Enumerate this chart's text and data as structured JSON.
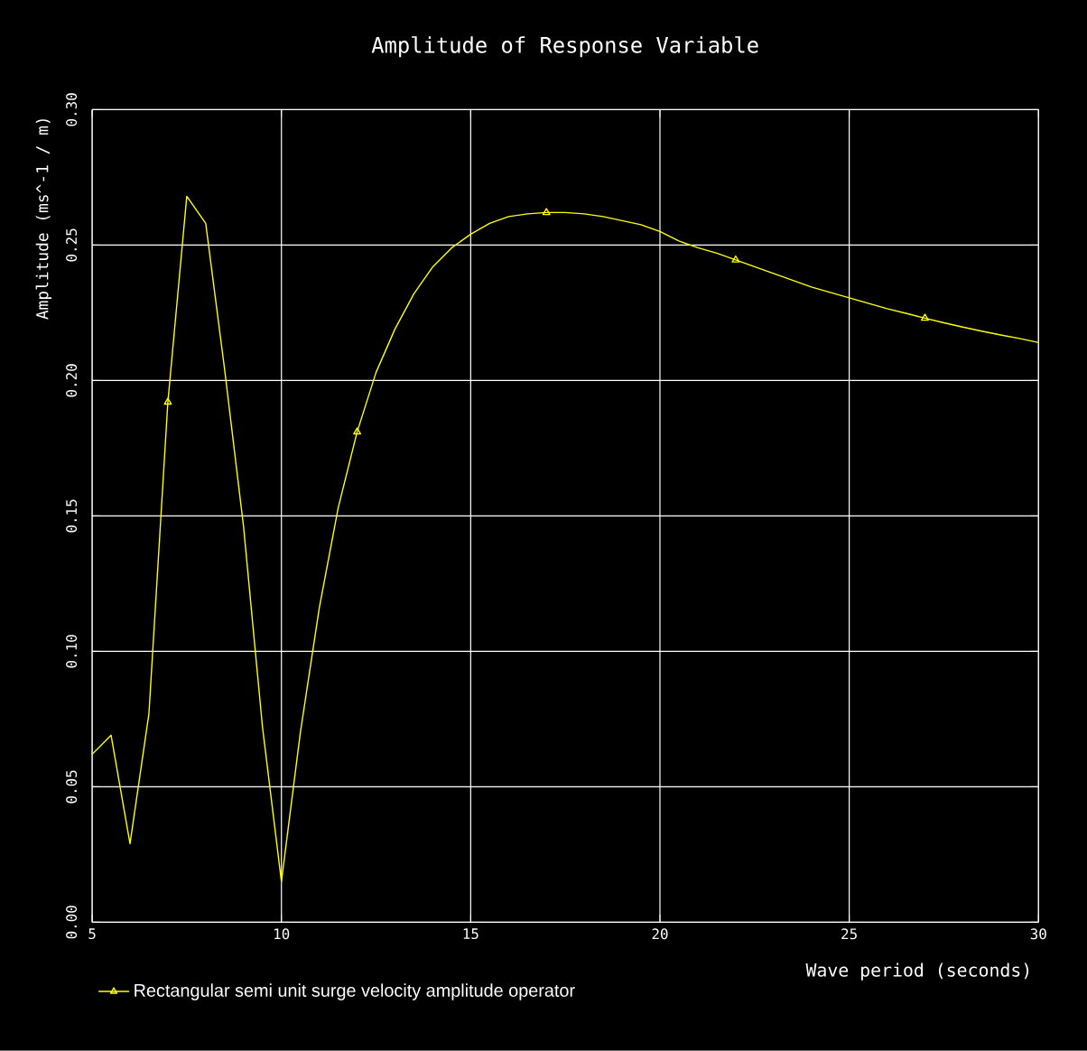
{
  "chart_data": {
    "type": "line",
    "title": "Amplitude of Response Variable",
    "xlabel": "Wave period (seconds)",
    "ylabel": "Amplitude (ms^-1 / m)",
    "xlim": [
      5,
      30
    ],
    "ylim": [
      0,
      0.3
    ],
    "xticks": [
      5,
      10,
      15,
      20,
      25,
      30
    ],
    "yticks": [
      {
        "value": 0,
        "label": "0.00"
      },
      {
        "value": 0.05,
        "label": "0.05"
      },
      {
        "value": 0.1,
        "label": "0.10"
      },
      {
        "value": 0.15,
        "label": "0.15"
      },
      {
        "value": 0.2,
        "label": "0.20"
      },
      {
        "value": 0.25,
        "label": "0.25"
      },
      {
        "value": 0.3,
        "label": "0.30"
      }
    ],
    "grid": true,
    "legend": "bottom left",
    "line_style": "solid",
    "x": [
      5,
      5.5,
      6,
      6.5,
      7,
      7.5,
      8,
      8.5,
      9,
      9.5,
      10,
      10.5,
      11,
      11.5,
      12,
      12.5,
      13,
      13.5,
      14,
      14.5,
      15,
      15.5,
      16,
      16.5,
      17,
      17.5,
      18,
      18.5,
      19,
      19.5,
      20,
      20.5,
      21,
      21.5,
      22,
      22.5,
      23,
      23.5,
      24,
      24.5,
      25,
      25.5,
      26,
      26.5,
      27,
      27.5,
      28,
      28.5,
      29,
      29.5,
      30
    ],
    "series": [
      {
        "name": "Rectangular semi unit surge velocity amplitude operator",
        "color": "#ffff00",
        "marker": "none",
        "values": [
          0.062,
          0.069,
          0.029,
          0.077,
          0.192,
          0.268,
          0.258,
          0.204,
          0.146,
          0.072,
          0.015,
          0.07,
          0.116,
          0.153,
          0.181,
          0.203,
          0.219,
          0.232,
          0.242,
          0.249,
          0.254,
          0.258,
          0.2605,
          0.2615,
          0.262,
          0.262,
          0.2615,
          0.2605,
          0.259,
          0.2575,
          0.255,
          0.2515,
          0.249,
          0.247,
          0.2445,
          0.242,
          0.2395,
          0.237,
          0.2345,
          0.2325,
          0.2305,
          0.2285,
          0.2265,
          0.2248,
          0.223,
          0.2213,
          0.2197,
          0.2182,
          0.2168,
          0.2155,
          0.214
        ]
      },
      {
        "type": "scatter",
        "color": "#ffff00",
        "marker": "triangle",
        "x": [
          7,
          12,
          17,
          22,
          27
        ],
        "values": [
          0.192,
          0.181,
          0.262,
          0.2445,
          0.223
        ]
      }
    ]
  }
}
